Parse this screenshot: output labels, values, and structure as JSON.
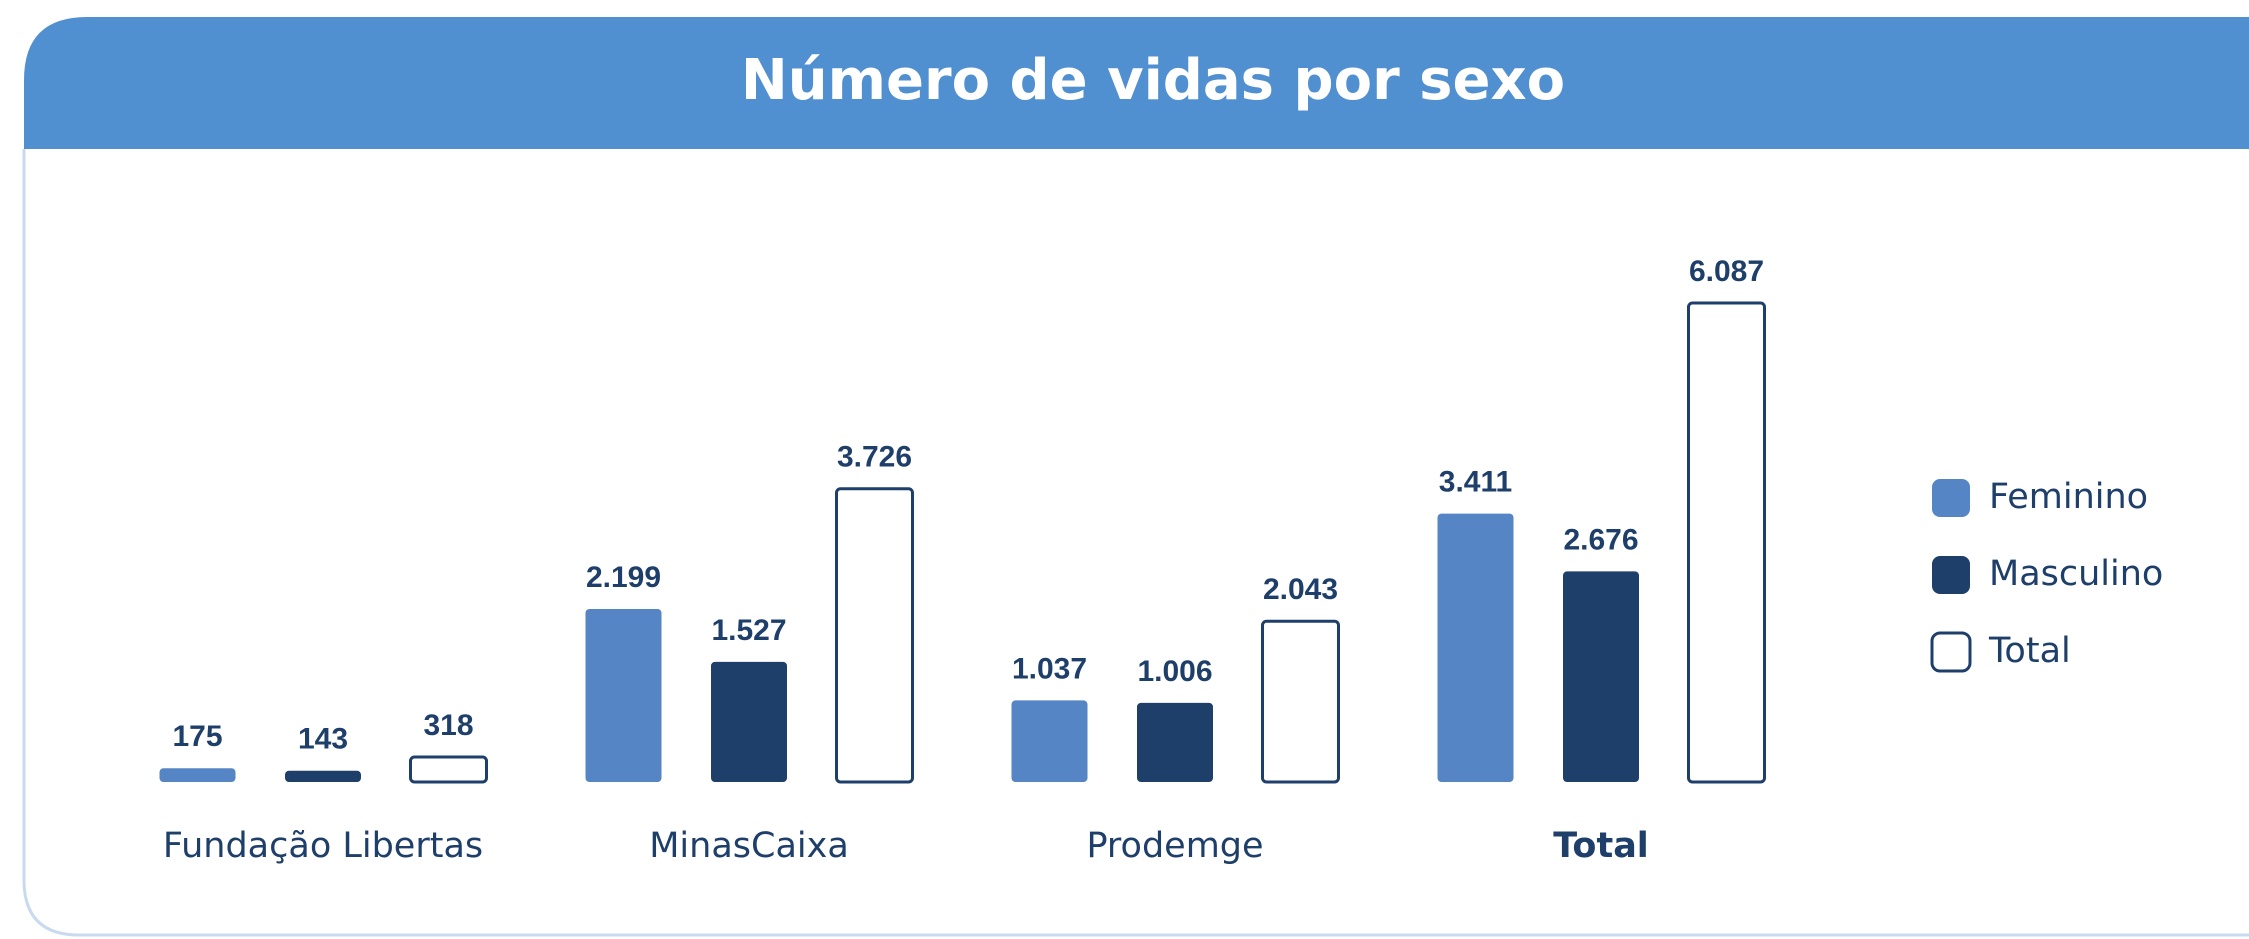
{
  "chart_data": {
    "type": "bar",
    "title": "Número de vidas por sexo",
    "categories": [
      "Fundação Libertas",
      "MinasCaixa",
      "Prodemge",
      "Total"
    ],
    "series": [
      {
        "name": "Feminino",
        "color": "#5585c5",
        "values": [
          175,
          2199,
          1037,
          3411
        ],
        "value_labels": [
          "175",
          "2.199",
          "1.037",
          "3.411"
        ]
      },
      {
        "name": "Masculino",
        "color": "#1f3f6b",
        "values": [
          143,
          1527,
          1006,
          2676
        ],
        "value_labels": [
          "143",
          "1.527",
          "1.006",
          "2.676"
        ]
      },
      {
        "name": "Total",
        "color": "#ffffff",
        "values": [
          318,
          3726,
          2043,
          6087
        ],
        "value_labels": [
          "318",
          "3.726",
          "2.043",
          "6.087"
        ]
      }
    ],
    "legend": "right"
  }
}
